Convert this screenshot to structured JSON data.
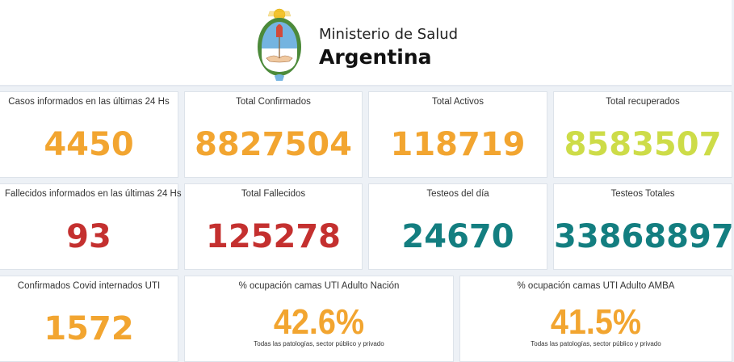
{
  "header": {
    "ministry": "Ministerio de Salud",
    "country": "Argentina"
  },
  "colors": {
    "orange": "#f2a530",
    "lime": "#cddc48",
    "red": "#c4302f",
    "teal": "#137e80"
  },
  "cards": [
    {
      "title": "Casos informados en las últimas 24 Hs",
      "value": "4450",
      "color": "orange"
    },
    {
      "title": "Total Confirmados",
      "value": "8827504",
      "color": "orange"
    },
    {
      "title": "Total Activos",
      "value": "118719",
      "color": "orange"
    },
    {
      "title": "Total recuperados",
      "value": "8583507",
      "color": "lime"
    },
    {
      "title": "Fallecidos informados en las últimas 24 Hs",
      "value": "93",
      "color": "red"
    },
    {
      "title": "Total Fallecidos",
      "value": "125278",
      "color": "red"
    },
    {
      "title": "Testeos del día",
      "value": "24670",
      "color": "teal"
    },
    {
      "title": "Testeos Totales",
      "value": "33868897",
      "color": "teal"
    },
    {
      "title": "Confirmados Covid internados UTI",
      "value": "1572",
      "color": "orange"
    },
    {
      "title": "% ocupación camas UTI Adulto Nación",
      "value": "42.6%",
      "subtitle": "Todas las patologías, sector público y privado",
      "color": "orange"
    },
    {
      "title": "% ocupación camas UTI Adulto AMBA",
      "value": "41.5%",
      "subtitle": "Todas las patologías, sector público y privado",
      "color": "orange"
    }
  ]
}
